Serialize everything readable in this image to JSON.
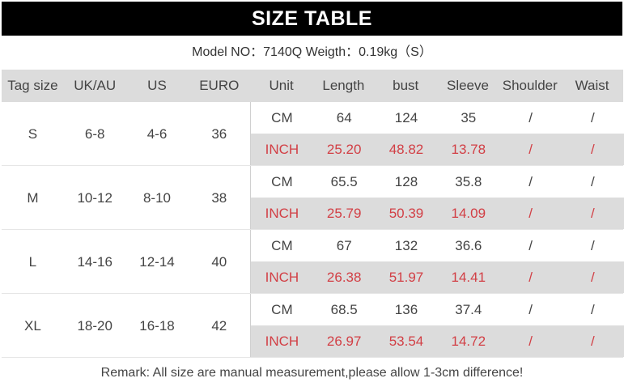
{
  "title": "SIZE TABLE",
  "subtitle": "Model NO：7140Q Weigth：0.19kg（S）",
  "headers": [
    "Tag size",
    "UK/AU",
    "US",
    "EURO",
    "Unit",
    "Length",
    "bust",
    "Sleeve",
    "Shoulder",
    "Waist"
  ],
  "sizes": [
    {
      "tag": "S",
      "uk": "6-8",
      "us": "4-6",
      "euro": "36",
      "cm": [
        "CM",
        "64",
        "124",
        "35",
        "/",
        "/"
      ],
      "inch": [
        "INCH",
        "25.20",
        "48.82",
        "13.78",
        "/",
        "/"
      ]
    },
    {
      "tag": "M",
      "uk": "10-12",
      "us": "8-10",
      "euro": "38",
      "cm": [
        "CM",
        "65.5",
        "128",
        "35.8",
        "/",
        "/"
      ],
      "inch": [
        "INCH",
        "25.79",
        "50.39",
        "14.09",
        "/",
        "/"
      ]
    },
    {
      "tag": "L",
      "uk": "14-16",
      "us": "12-14",
      "euro": "40",
      "cm": [
        "CM",
        "67",
        "132",
        "36.6",
        "/",
        "/"
      ],
      "inch": [
        "INCH",
        "26.38",
        "51.97",
        "14.41",
        "/",
        "/"
      ]
    },
    {
      "tag": "XL",
      "uk": "18-20",
      "us": "16-18",
      "euro": "42",
      "cm": [
        "CM",
        "68.5",
        "136",
        "37.4",
        "/",
        "/"
      ],
      "inch": [
        "INCH",
        "26.97",
        "53.54",
        "14.72",
        "/",
        "/"
      ]
    }
  ],
  "remark": "Remark: All size are manual measurement,please allow 1-3cm difference!",
  "colors": {
    "header_bg": "#000000",
    "row_gray": "#dcdcdc",
    "inch_text": "#d23f45"
  }
}
